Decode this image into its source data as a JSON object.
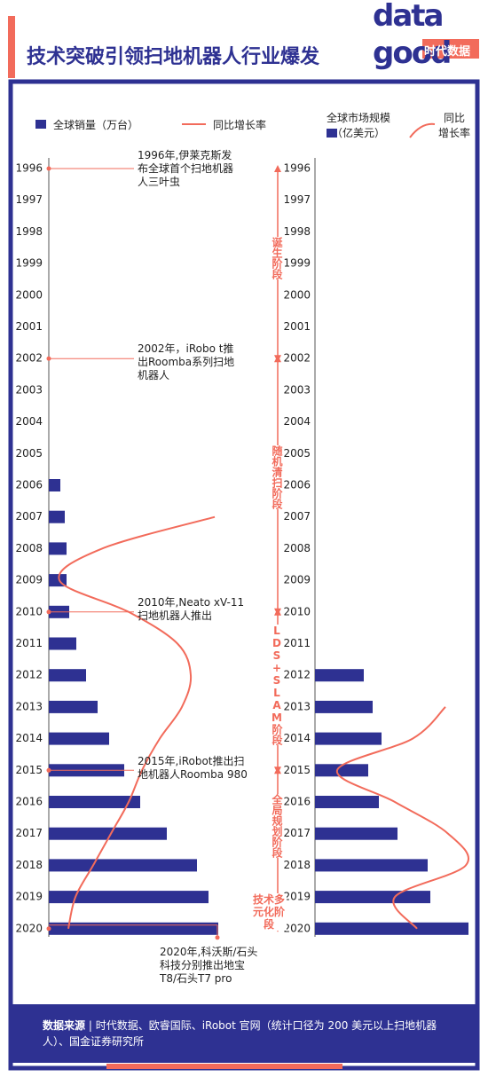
{
  "title": "技术突破引领扫地机器人行业爆发",
  "logo": {
    "top": "data",
    "bottom": "good",
    "tag": "时代数据"
  },
  "chart_data": [
    {
      "type": "hbar-line",
      "categories": [
        "1996",
        "1997",
        "1998",
        "1999",
        "2000",
        "2001",
        "2002",
        "2003",
        "2004",
        "2005",
        "2006",
        "2007",
        "2008",
        "2009",
        "2010",
        "2011",
        "2012",
        "2013",
        "2014",
        "2015",
        "2016",
        "2017",
        "2018",
        "2019",
        "2020"
      ],
      "xlim": [
        0,
        200
      ],
      "series": [
        {
          "name": "全球销量（万台）",
          "color": "#2e3192",
          "values": [
            null,
            null,
            null,
            null,
            null,
            null,
            null,
            null,
            null,
            null,
            13,
            18,
            20,
            20,
            23,
            31,
            42,
            55,
            68,
            85,
            103,
            133,
            167,
            180,
            191
          ]
        },
        {
          "name": "同比增长率",
          "color": "#f26b5b",
          "values": [
            null,
            null,
            null,
            null,
            null,
            null,
            null,
            null,
            null,
            null,
            null,
            187,
            60,
            12,
            90,
            145,
            160,
            150,
            125,
            105,
            90,
            70,
            50,
            30,
            22
          ]
        }
      ]
    },
    {
      "type": "hbar-line",
      "categories": [
        "1996",
        "1997",
        "1998",
        "1999",
        "2000",
        "2001",
        "2002",
        "2003",
        "2004",
        "2005",
        "2006",
        "2007",
        "2008",
        "2009",
        "2010",
        "2011",
        "2012",
        "2013",
        "2014",
        "2015",
        "2016",
        "2017",
        "2018",
        "2019",
        "2020"
      ],
      "xlim": [
        0,
        200
      ],
      "series": [
        {
          "name": "全球市场规模\n（亿美元）",
          "color": "#2e3192",
          "values": [
            null,
            null,
            null,
            null,
            null,
            null,
            null,
            null,
            null,
            null,
            null,
            null,
            null,
            null,
            null,
            null,
            55,
            65,
            75,
            60,
            72,
            93,
            127,
            130,
            173
          ]
        },
        {
          "name": "同比\n增长率",
          "color": "#f26b5b",
          "values": [
            null,
            null,
            null,
            null,
            null,
            null,
            null,
            null,
            null,
            null,
            null,
            null,
            null,
            null,
            null,
            null,
            null,
            147,
            110,
            25,
            90,
            150,
            170,
            90,
            115
          ]
        }
      ]
    }
  ],
  "stages": [
    "诞生阶段",
    "随机清扫阶段",
    "LDS+SLAM阶段",
    "全局规划阶段",
    "技术多元化阶段"
  ],
  "annotations": [
    "1996年,伊莱克斯发\n布全球首个扫地机器\n人三叶虫",
    "2002年，iRobo t推\n出Roomba系列扫地\n机器人",
    "2010年,Neato xV-11\n扫地机器人推出",
    "2015年,iRobot推出扫\n地机器人Roomba 980",
    "2020年,科沃斯/石头\n科技分别推出地宝\nT8/石头T7 pro"
  ],
  "source": {
    "label": "数据来源",
    "text": "时代数据、欧睿国际、iRobot 官网（统计口径为 200 美元以上扫地机器人）、国金证券研究所"
  }
}
